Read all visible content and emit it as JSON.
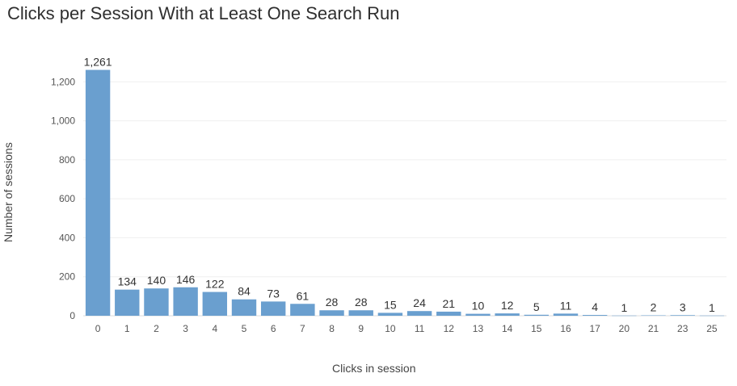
{
  "chart_data": {
    "type": "bar",
    "title": "Clicks per Session With at Least One Search Run",
    "xlabel": "Clicks in session",
    "ylabel": "Number of sessions",
    "categories": [
      "0",
      "1",
      "2",
      "3",
      "4",
      "5",
      "6",
      "7",
      "8",
      "9",
      "10",
      "11",
      "12",
      "13",
      "14",
      "15",
      "16",
      "17",
      "20",
      "21",
      "23",
      "25"
    ],
    "values": [
      1261,
      134,
      140,
      146,
      122,
      84,
      73,
      61,
      28,
      28,
      15,
      24,
      21,
      10,
      12,
      5,
      11,
      4,
      1,
      2,
      3,
      1
    ],
    "data_labels": [
      "1,261",
      "134",
      "140",
      "146",
      "122",
      "84",
      "73",
      "61",
      "28",
      "28",
      "15",
      "24",
      "21",
      "10",
      "12",
      "5",
      "11",
      "4",
      "1",
      "2",
      "3",
      "1"
    ],
    "yticks": [
      0,
      200,
      400,
      600,
      800,
      1000,
      1200
    ],
    "ytick_labels": [
      "0",
      "200",
      "400",
      "600",
      "800",
      "1,000",
      "1,200"
    ],
    "ylim": [
      0,
      1400
    ],
    "grid": true,
    "bar_color": "#6a9fcf"
  }
}
